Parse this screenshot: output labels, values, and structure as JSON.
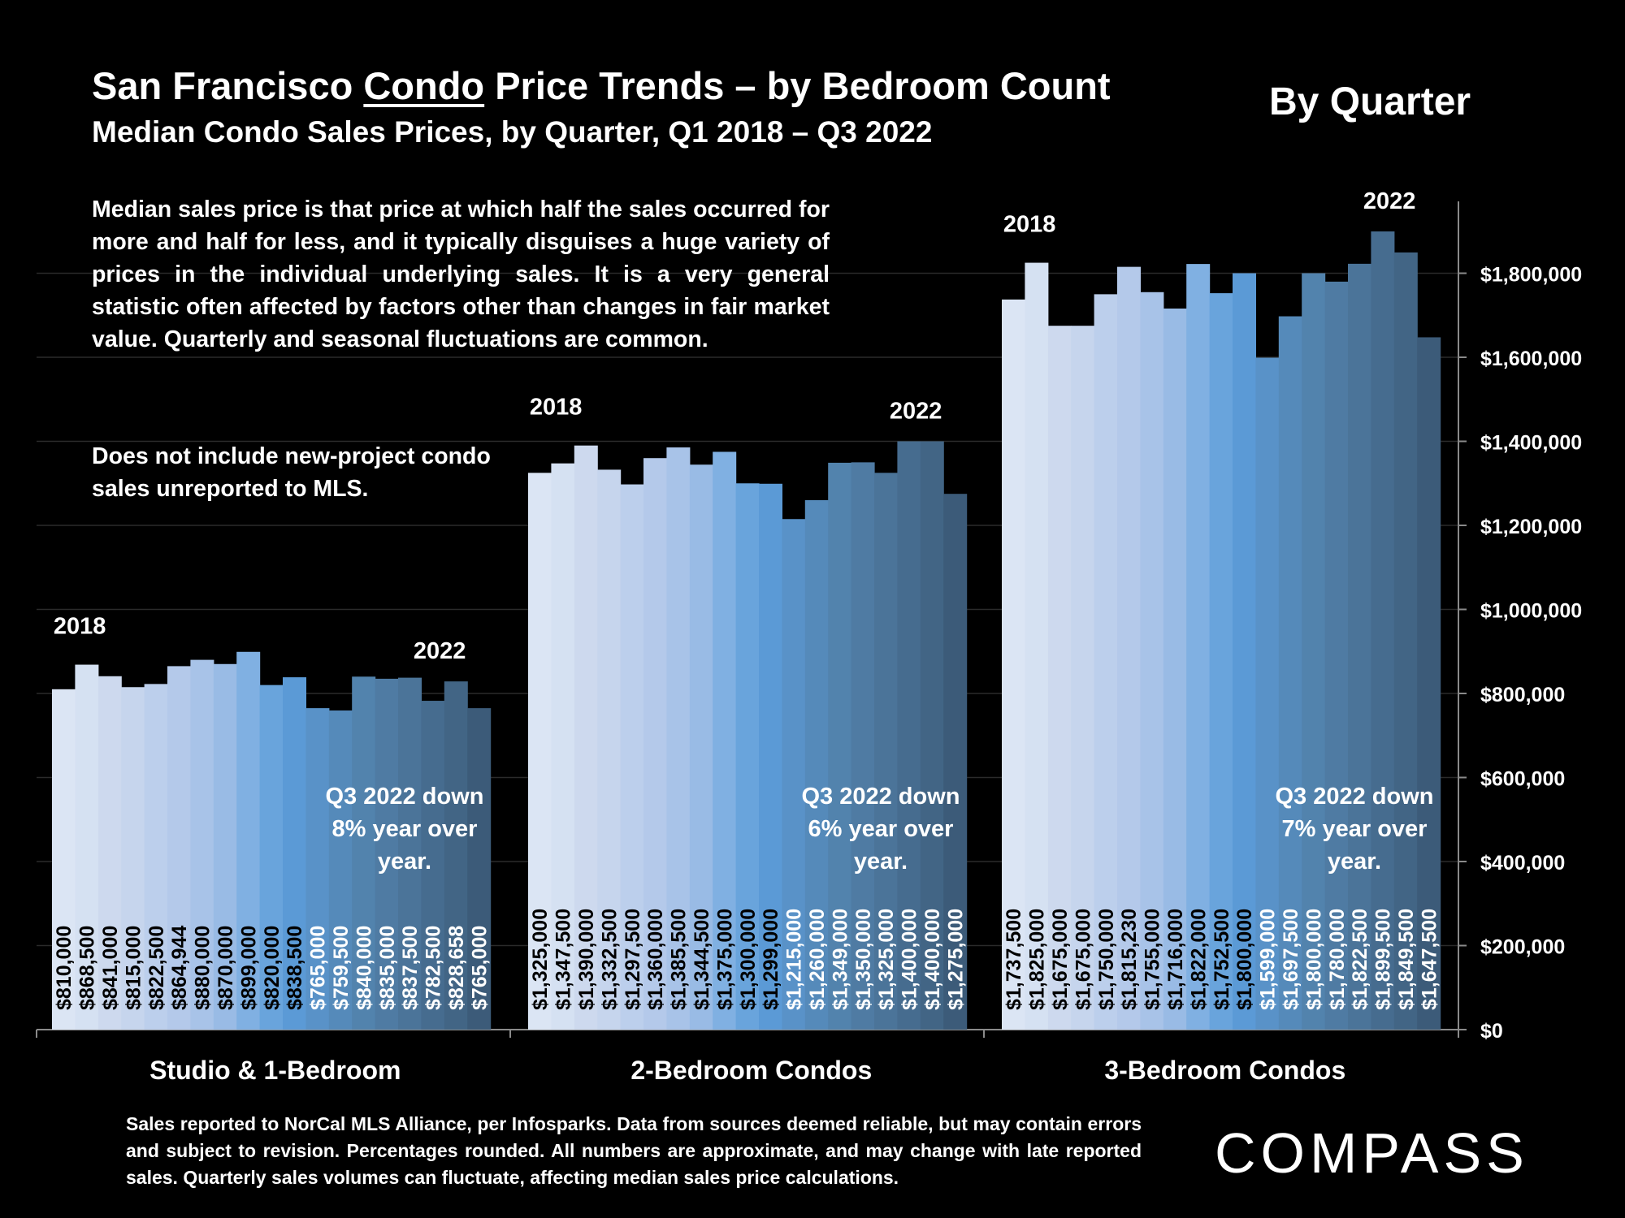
{
  "header": {
    "title_pre": "San Francisco ",
    "title_underlined": "Condo",
    "title_post": " Price Trends – by Bedroom Count",
    "subtitle": "Median Condo Sales Prices, by Quarter, Q1 2018 – Q3 2022",
    "period_label": "By Quarter"
  },
  "notes": {
    "median_definition": "Median sales price is that price at which half the sales occurred for more and half for less, and it typically disguises a huge variety of prices in the individual underlying sales. It is a very general statistic often affected by factors other than changes in fair market value. Quarterly and seasonal fluctuations are common.",
    "exclusion": "Does not include new-project condo sales unreported to MLS."
  },
  "footer": {
    "disclaimer": "Sales reported to NorCal MLS Alliance, per Infosparks. Data from sources deemed reliable, but may contain errors and subject to revision. Percentages rounded. All numbers are approximate, and may change with late reported sales. Quarterly sales volumes can fluctuate, affecting median sales price calculations.",
    "logo": "COMPASS"
  },
  "chart_data": {
    "type": "bar",
    "title": "San Francisco Condo Price Trends – by Bedroom Count",
    "ylim": [
      0,
      2000000
    ],
    "yticks": [
      0,
      200000,
      400000,
      600000,
      800000,
      1000000,
      1200000,
      1400000,
      1600000,
      1800000
    ],
    "ytick_labels": [
      "$0",
      "$200,000",
      "$400,000",
      "$600,000",
      "$800,000",
      "$1,000,000",
      "$1,200,000",
      "$1,400,000",
      "$1,600,000",
      "$1,800,000"
    ],
    "y_axis_position": "right",
    "grid": true,
    "groups": [
      {
        "name": "Studio & 1-Bedroom",
        "start_label": "2018",
        "end_label": "2022",
        "annotation": [
          "Q3 2022 down",
          "8% year over",
          "year."
        ],
        "values": [
          810000,
          868500,
          841000,
          815000,
          822500,
          864944,
          880000,
          870000,
          899000,
          820000,
          838500,
          765000,
          759500,
          840000,
          835000,
          837500,
          782500,
          828658,
          765000
        ],
        "labels": [
          "$810,000",
          "$868,500",
          "$841,000",
          "$815,000",
          "$822,500",
          "$864,944",
          "$880,000",
          "$870,000",
          "$899,000",
          "$820,000",
          "$838,500",
          "$765,000",
          "$759,500",
          "$840,000",
          "$835,000",
          "$837,500",
          "$782,500",
          "$828,658",
          "$765,000"
        ]
      },
      {
        "name": "2-Bedroom Condos",
        "start_label": "2018",
        "end_label": "2022",
        "annotation": [
          "Q3 2022 down",
          "6% year over",
          "year."
        ],
        "values": [
          1325000,
          1347500,
          1390000,
          1332500,
          1297500,
          1360000,
          1385500,
          1344500,
          1375000,
          1300000,
          1299000,
          1215000,
          1260000,
          1349000,
          1350000,
          1325000,
          1400000,
          1400000,
          1275000
        ],
        "labels": [
          "$1,325,000",
          "$1,347,500",
          "$1,390,000",
          "$1,332,500",
          "$1,297,500",
          "$1,360,000",
          "$1,385,500",
          "$1,344,500",
          "$1,375,000",
          "$1,300,000",
          "$1,299,000",
          "$1,215,000",
          "$1,260,000",
          "$1,349,000",
          "$1,350,000",
          "$1,325,000",
          "$1,400,000",
          "$1,400,000",
          "$1,275,000"
        ]
      },
      {
        "name": "3-Bedroom Condos",
        "start_label": "2018",
        "end_label": "2022",
        "annotation": [
          "Q3 2022 down",
          "7% year over",
          "year."
        ],
        "values": [
          1737500,
          1825000,
          1675000,
          1675000,
          1750000,
          1815230,
          1755000,
          1716000,
          1822000,
          1752500,
          1800000,
          1599000,
          1697500,
          1800000,
          1780000,
          1822500,
          1899500,
          1849500,
          1647500
        ],
        "labels": [
          "$1,737,500",
          "$1,825,000",
          "$1,675,000",
          "$1,675,000",
          "$1,750,000",
          "$1,815,230",
          "$1,755,000",
          "$1,716,000",
          "$1,822,000",
          "$1,752,500",
          "$1,800,000",
          "$1,599,000",
          "$1,697,500",
          "$1,800,000",
          "$1,780,000",
          "$1,822,500",
          "$1,899,500",
          "$1,849,500",
          "$1,647,500"
        ]
      }
    ],
    "bar_colors": [
      "#dbe5f4",
      "#d5e1f2",
      "#cdd9ee",
      "#c6d5ed",
      "#bccfec",
      "#b4c9ea",
      "#a8c3e8",
      "#99bbe5",
      "#80b0e2",
      "#69a4dc",
      "#5b9ad6",
      "#5992c8",
      "#558aba",
      "#5283ad",
      "#4f7ba3",
      "#4b7499",
      "#466c8f",
      "#426585",
      "#3c5b79"
    ]
  }
}
